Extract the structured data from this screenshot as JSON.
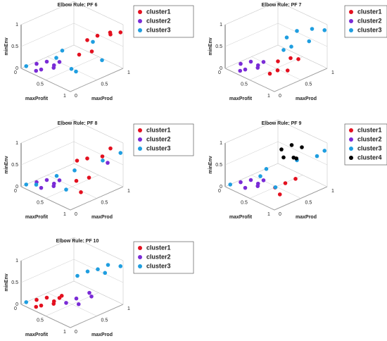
{
  "chart_data": [
    {
      "type": "scatter3d",
      "title": "Elbow Rule: PF 6",
      "xlabel": "maxProfit",
      "ylabel": "maxProd",
      "zlabel": "minEnv",
      "xlim": [
        0,
        1
      ],
      "xticks": [
        0,
        0.5,
        1
      ],
      "ylim": [
        0,
        1
      ],
      "yticks": [
        0,
        0.5,
        1
      ],
      "zlim": [
        0,
        1
      ],
      "zticks": [
        0,
        0.5,
        1
      ],
      "grid": true,
      "series": [
        {
          "name": "cluster1",
          "color": "#e3101f",
          "x": [
            0.7,
            0.8,
            0.9,
            0.95,
            0.85,
            0.75,
            1.0
          ],
          "y": [
            0.6,
            0.7,
            0.5,
            0.8,
            0.9,
            0.4,
            0.95
          ],
          "z": [
            0.7,
            0.8,
            0.6,
            0.9,
            0.75,
            0.5,
            0.85
          ]
        },
        {
          "name": "cluster2",
          "color": "#7a2bd6",
          "x": [
            0.1,
            0.2,
            0.3,
            0.4,
            0.35,
            0.5,
            0.25
          ],
          "y": [
            0.2,
            0.3,
            0.1,
            0.25,
            0.4,
            0.15,
            0.05
          ],
          "z": [
            0.05,
            0.1,
            0.08,
            0.15,
            0.12,
            0.2,
            0.05
          ]
        },
        {
          "name": "cluster3",
          "color": "#1f9ee0",
          "x": [
            0.05,
            0.3,
            0.5,
            0.6,
            0.7,
            0.9,
            1.0
          ],
          "y": [
            0.05,
            0.5,
            0.2,
            0.8,
            0.3,
            0.2,
            0.6
          ],
          "z": [
            0.05,
            0.3,
            0.4,
            0.5,
            0.2,
            0.3,
            0.4
          ]
        }
      ]
    },
    {
      "type": "scatter3d",
      "title": "Elbow Rule: PF 7",
      "xlabel": "maxProfit",
      "ylabel": "maxProd",
      "zlabel": "minEnv",
      "xlim": [
        0,
        1
      ],
      "xticks": [
        0,
        0.5,
        1
      ],
      "ylim": [
        0,
        1
      ],
      "yticks": [
        0,
        0.5,
        1
      ],
      "zlim": [
        0,
        1
      ],
      "zticks": [
        0,
        0.5,
        1
      ],
      "grid": true,
      "series": [
        {
          "name": "cluster1",
          "color": "#e3101f",
          "x": [
            0.75,
            0.85,
            0.9,
            1.0,
            0.8,
            0.95
          ],
          "y": [
            0.3,
            0.2,
            0.4,
            0.25,
            0.1,
            0.5
          ],
          "z": [
            0.4,
            0.3,
            0.5,
            0.35,
            0.25,
            0.45
          ]
        },
        {
          "name": "cluster2",
          "color": "#7a2bd6",
          "x": [
            0.1,
            0.2,
            0.3,
            0.4,
            0.35,
            0.5,
            0.25
          ],
          "y": [
            0.2,
            0.3,
            0.1,
            0.25,
            0.4,
            0.15,
            0.05
          ],
          "z": [
            0.05,
            0.1,
            0.08,
            0.15,
            0.12,
            0.2,
            0.05
          ]
        },
        {
          "name": "cluster3",
          "color": "#1f9ee0",
          "x": [
            0.5,
            0.6,
            0.7,
            0.8,
            0.9,
            0.65,
            1.0
          ],
          "y": [
            0.7,
            0.8,
            0.6,
            0.9,
            0.75,
            0.5,
            0.95
          ],
          "z": [
            0.6,
            0.75,
            0.55,
            0.85,
            0.7,
            0.5,
            0.9
          ]
        }
      ]
    },
    {
      "type": "scatter3d",
      "title": "Elbow Rule: PF 8",
      "xlabel": "maxProfit",
      "ylabel": "maxProd",
      "zlabel": "minEnv",
      "xlim": [
        0,
        1
      ],
      "xticks": [
        0,
        0.5,
        1
      ],
      "ylim": [
        0,
        1
      ],
      "yticks": [
        0,
        0.5,
        1
      ],
      "zlim": [
        0,
        1
      ],
      "zticks": [
        0,
        0.5,
        1
      ],
      "grid": true,
      "series": [
        {
          "name": "cluster1",
          "color": "#e3101f",
          "x": [
            0.6,
            0.7,
            0.8,
            0.9,
            1.0,
            0.85,
            0.95
          ],
          "y": [
            0.5,
            0.6,
            0.3,
            0.7,
            0.2,
            0.9,
            0.4
          ],
          "z": [
            0.65,
            0.7,
            0.4,
            0.8,
            0.3,
            0.85,
            0.5
          ]
        },
        {
          "name": "cluster2",
          "color": "#7a2bd6",
          "x": [
            0.1,
            0.2,
            0.3,
            0.4,
            0.35,
            0.5,
            0.9
          ],
          "y": [
            0.2,
            0.3,
            0.1,
            0.25,
            0.4,
            0.15,
            0.8
          ],
          "z": [
            0.05,
            0.1,
            0.08,
            0.15,
            0.12,
            0.2,
            0.6
          ]
        },
        {
          "name": "cluster3",
          "color": "#1f9ee0",
          "x": [
            0.05,
            0.2,
            0.4,
            0.55,
            0.7,
            0.8,
            1.0
          ],
          "y": [
            0.05,
            0.1,
            0.3,
            0.5,
            0.2,
            0.8,
            0.95
          ],
          "z": [
            0.05,
            0.1,
            0.3,
            0.4,
            0.2,
            0.6,
            0.8
          ]
        }
      ]
    },
    {
      "type": "scatter3d",
      "title": "Elbow Rule: PF 9",
      "xlabel": "maxProfit",
      "ylabel": "maxProd",
      "zlabel": "minEnv",
      "xlim": [
        0,
        1
      ],
      "xticks": [
        0,
        0.5,
        1
      ],
      "ylim": [
        0,
        1
      ],
      "yticks": [
        0,
        0.5,
        1
      ],
      "zlim": [
        0,
        1
      ],
      "zticks": [
        0,
        0.5,
        1
      ],
      "grid": true,
      "series": [
        {
          "name": "cluster1",
          "color": "#e3101f",
          "x": [
            0.8,
            0.9,
            0.95,
            1.0
          ],
          "y": [
            0.2,
            0.3,
            0.15,
            0.4
          ],
          "z": [
            0.3,
            0.4,
            0.25,
            0.5
          ]
        },
        {
          "name": "cluster2",
          "color": "#7a2bd6",
          "x": [
            0.1,
            0.2,
            0.3,
            0.4,
            0.35,
            0.5
          ],
          "y": [
            0.2,
            0.3,
            0.1,
            0.25,
            0.4,
            0.15
          ],
          "z": [
            0.05,
            0.1,
            0.08,
            0.15,
            0.12,
            0.2
          ]
        },
        {
          "name": "cluster3",
          "color": "#1f9ee0",
          "x": [
            0.05,
            0.3,
            0.5,
            0.6,
            0.7,
            0.9,
            1.0
          ],
          "y": [
            0.05,
            0.5,
            0.2,
            0.8,
            0.3,
            0.9,
            0.95
          ],
          "z": [
            0.05,
            0.3,
            0.4,
            0.5,
            0.2,
            0.7,
            0.85
          ]
        },
        {
          "name": "cluster4",
          "color": "#000000",
          "x": [
            0.5,
            0.6,
            0.65,
            0.7,
            0.75,
            0.8
          ],
          "y": [
            0.6,
            0.7,
            0.5,
            0.8,
            0.65,
            0.55
          ],
          "z": [
            0.8,
            0.9,
            0.75,
            0.85,
            0.7,
            0.8
          ]
        }
      ]
    },
    {
      "type": "scatter3d",
      "title": "Elbow Rule: PF 10",
      "xlabel": "maxProfit",
      "ylabel": "maxProd",
      "zlabel": "minEnv",
      "xlim": [
        0,
        1
      ],
      "xticks": [
        0,
        0.5,
        1
      ],
      "ylim": [
        0,
        1
      ],
      "yticks": [
        0,
        0.5,
        1
      ],
      "zlim": [
        0,
        1
      ],
      "zticks": [
        0,
        0.5,
        1
      ],
      "grid": true,
      "series": [
        {
          "name": "cluster1",
          "color": "#e3101f",
          "x": [
            0.1,
            0.2,
            0.3,
            0.4,
            0.35,
            0.5,
            0.25,
            0.45
          ],
          "y": [
            0.2,
            0.3,
            0.1,
            0.25,
            0.4,
            0.15,
            0.05,
            0.35
          ],
          "z": [
            0.05,
            0.1,
            0.08,
            0.15,
            0.12,
            0.2,
            0.05,
            0.25
          ]
        },
        {
          "name": "cluster2",
          "color": "#7a2bd6",
          "x": [
            0.7,
            0.8,
            0.9,
            1.0,
            0.85
          ],
          "y": [
            0.2,
            0.3,
            0.25,
            0.4,
            0.5
          ],
          "z": [
            0.3,
            0.4,
            0.35,
            0.5,
            0.45
          ]
        },
        {
          "name": "cluster3",
          "color": "#1f9ee0",
          "x": [
            0.05,
            0.5,
            0.6,
            0.7,
            0.8,
            0.9,
            1.0
          ],
          "y": [
            0.05,
            0.6,
            0.7,
            0.8,
            0.9,
            0.75,
            0.95
          ],
          "z": [
            0.05,
            0.6,
            0.7,
            0.75,
            0.85,
            0.8,
            0.9
          ]
        }
      ]
    }
  ]
}
